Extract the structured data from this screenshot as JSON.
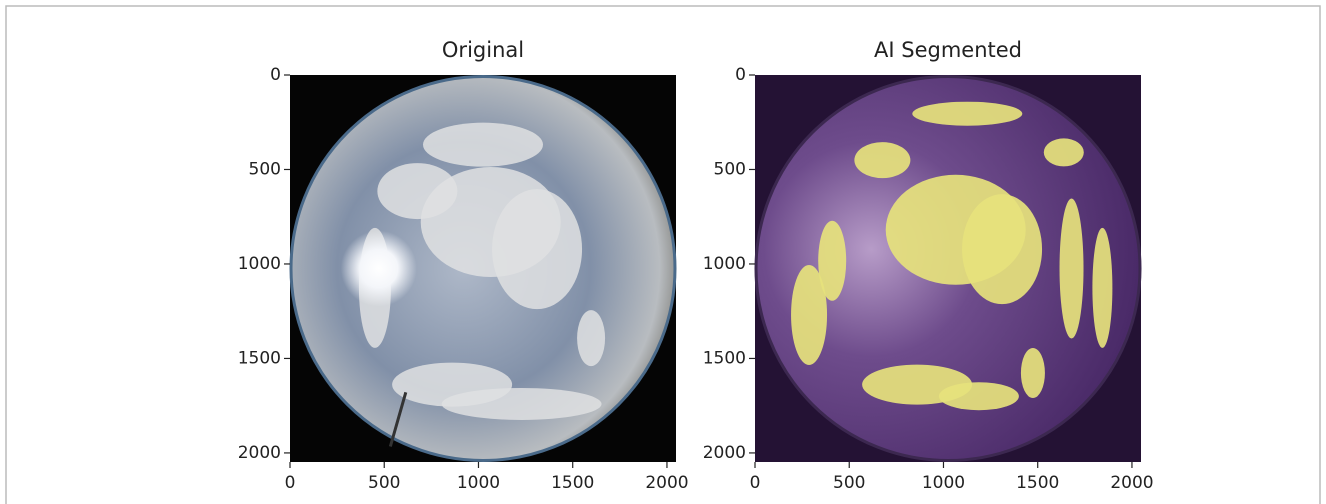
{
  "chart_data": [
    {
      "type": "image",
      "title": "Original",
      "xlim": [
        0,
        2048
      ],
      "ylim": [
        2048,
        0
      ],
      "xticks": [
        0,
        500,
        1000,
        1500,
        2000
      ],
      "yticks": [
        0,
        500,
        1000,
        1500,
        2000
      ]
    },
    {
      "type": "image",
      "title": "AI Segmented",
      "xlim": [
        0,
        2048
      ],
      "ylim": [
        2048,
        0
      ],
      "xticks": [
        0,
        500,
        1000,
        1500,
        2000
      ],
      "yticks": [
        0,
        500,
        1000,
        1500,
        2000
      ]
    }
  ]
}
